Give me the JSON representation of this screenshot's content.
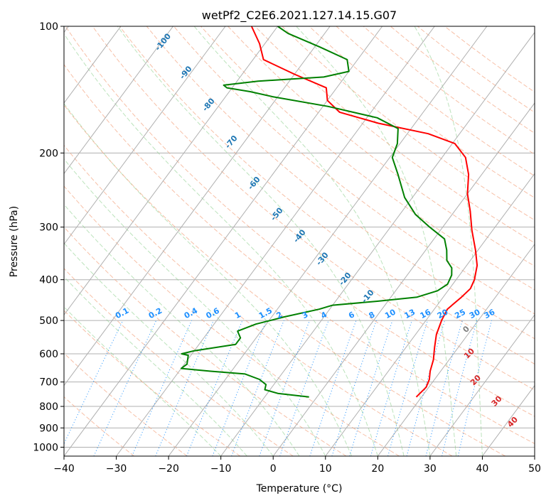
{
  "chart_data": {
    "type": "line",
    "title": "wetPf2_C2E6.2021.127.14.15.G07",
    "xlabel": "Temperature (°C)",
    "ylabel": "Pressure (hPa)",
    "xlim": [
      -40,
      50
    ],
    "ylim": [
      1050,
      100
    ],
    "y_scale": "log",
    "grid": true,
    "x_ticks": [
      -40,
      -30,
      -20,
      -10,
      0,
      10,
      20,
      30,
      40,
      50
    ],
    "y_ticks": [
      100,
      200,
      300,
      400,
      500,
      600,
      700,
      800,
      900,
      1000
    ],
    "series": [
      {
        "color": "#ff0000",
        "points": [
          [
            19.0,
            760
          ],
          [
            19.5,
            720
          ],
          [
            19.0,
            690
          ],
          [
            18.0,
            660
          ],
          [
            17.0,
            620
          ],
          [
            15.5,
            580
          ],
          [
            14.0,
            540
          ],
          [
            13.0,
            500
          ],
          [
            12.5,
            470
          ],
          [
            13.5,
            440
          ],
          [
            14.0,
            420
          ],
          [
            13.5,
            400
          ],
          [
            12.0,
            370
          ],
          [
            9.5,
            340
          ],
          [
            6.0,
            305
          ],
          [
            3.0,
            275
          ],
          [
            0.0,
            250
          ],
          [
            -2.5,
            225
          ],
          [
            -5.5,
            205
          ],
          [
            -9.5,
            190
          ],
          [
            -16.0,
            180
          ],
          [
            -27.0,
            170
          ],
          [
            -36.0,
            160
          ],
          [
            -40.0,
            150
          ],
          [
            -42.0,
            140
          ],
          [
            -50.0,
            130
          ],
          [
            -58.0,
            120
          ],
          [
            -61.0,
            110
          ],
          [
            -65.0,
            100
          ]
        ]
      },
      {
        "color": "#008000",
        "points": [
          [
            -1.5,
            760
          ],
          [
            -8.0,
            745
          ],
          [
            -11.0,
            730
          ],
          [
            -11.5,
            710
          ],
          [
            -13.5,
            690
          ],
          [
            -17.0,
            670
          ],
          [
            -24.0,
            660
          ],
          [
            -30.0,
            650
          ],
          [
            -29.5,
            635
          ],
          [
            -30.0,
            620
          ],
          [
            -30.5,
            605
          ],
          [
            -32.0,
            600
          ],
          [
            -30.0,
            590
          ],
          [
            -23.0,
            570
          ],
          [
            -23.0,
            550
          ],
          [
            -24.5,
            530
          ],
          [
            -22.0,
            510
          ],
          [
            -17.5,
            490
          ],
          [
            -12.0,
            470
          ],
          [
            -10.0,
            460
          ],
          [
            -2.0,
            450
          ],
          [
            5.0,
            440
          ],
          [
            8.0,
            425
          ],
          [
            9.0,
            410
          ],
          [
            8.5,
            390
          ],
          [
            7.5,
            375
          ],
          [
            5.5,
            360
          ],
          [
            4.0,
            340
          ],
          [
            2.0,
            320
          ],
          [
            -2.5,
            300
          ],
          [
            -7.0,
            280
          ],
          [
            -11.5,
            255
          ],
          [
            -16.0,
            225
          ],
          [
            -19.5,
            205
          ],
          [
            -20.5,
            190
          ],
          [
            -22.5,
            175
          ],
          [
            -28.0,
            165
          ],
          [
            -39.0,
            155
          ],
          [
            -51.0,
            147
          ],
          [
            -56.0,
            143
          ],
          [
            -61.0,
            140
          ],
          [
            -62.0,
            138
          ],
          [
            -56.0,
            135
          ],
          [
            -44.0,
            132
          ],
          [
            -40.0,
            128
          ],
          [
            -42.0,
            120
          ],
          [
            -49.0,
            112
          ],
          [
            -57.0,
            104
          ],
          [
            -60.0,
            100
          ]
        ]
      }
    ],
    "mixing_ratio_labels": [
      "0.1",
      "0.2",
      "0.4",
      "0.6",
      "1",
      "1.5",
      "2",
      "3",
      "4",
      "6",
      "8",
      "10",
      "13",
      "16",
      "20",
      "25",
      "30",
      "36"
    ],
    "dry_adiabat_labels": [
      "0",
      "10",
      "20",
      "30",
      "40"
    ],
    "moist_adiabat_labels": [
      "-100",
      "-90",
      "-80",
      "-70",
      "-60",
      "-50",
      "-40",
      "-30",
      "-20",
      "-10"
    ]
  }
}
